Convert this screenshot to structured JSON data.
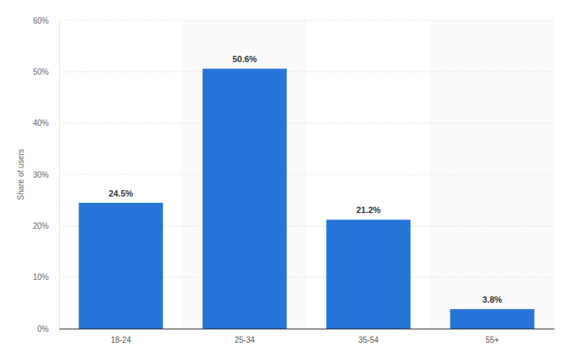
{
  "chart_data": {
    "type": "bar",
    "y_label": "Share of users",
    "categories": [
      "18-24",
      "25-34",
      "35-54",
      "55+"
    ],
    "values": [
      24.5,
      50.6,
      21.2,
      3.8
    ],
    "value_labels": [
      "24.5%",
      "50.6%",
      "21.2%",
      "3.8%"
    ],
    "color": "#2774d9",
    "ylim": [
      0,
      60
    ],
    "yticks": [
      {
        "value": 0,
        "label": "0%"
      },
      {
        "value": 10,
        "label": "10%"
      },
      {
        "value": 20,
        "label": "20%"
      },
      {
        "value": 30,
        "label": "30%"
      },
      {
        "value": 40,
        "label": "40%"
      },
      {
        "value": 50,
        "label": "50%"
      },
      {
        "value": 60,
        "label": "60%"
      }
    ],
    "grid": true,
    "data_labels": true
  }
}
